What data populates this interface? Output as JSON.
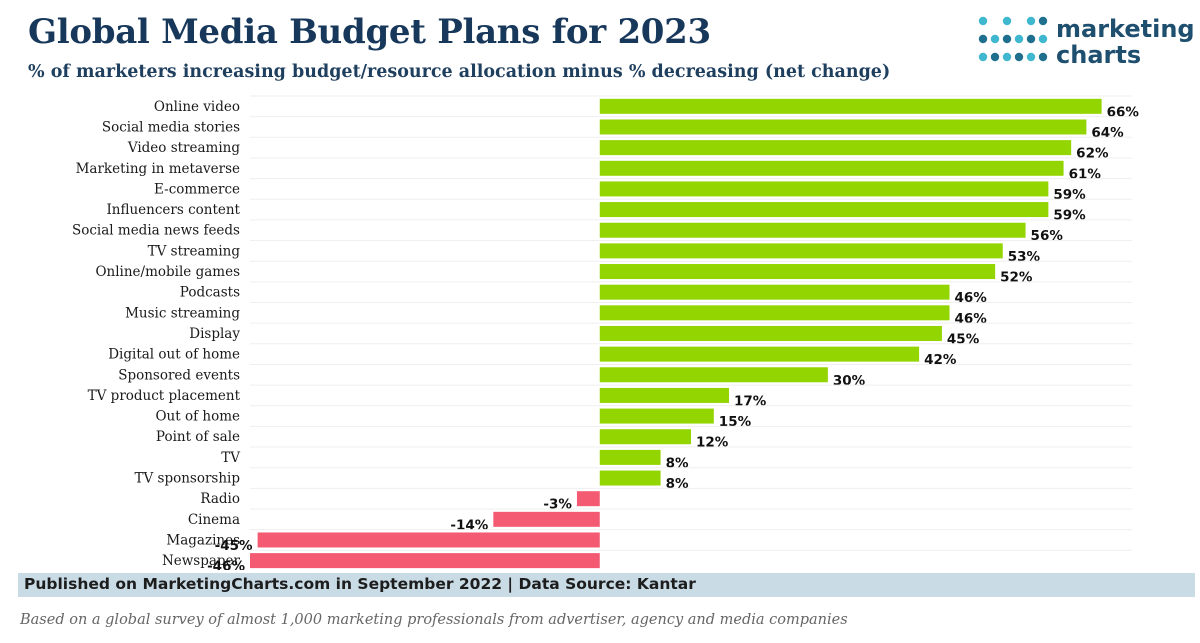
{
  "header": {
    "title": "Global Media Budget Plans for 2023",
    "subtitle": "% of marketers increasing budget/resource allocation minus % decreasing (net change)"
  },
  "logo": {
    "line1": "marketing",
    "line2": "charts",
    "dot_color_a": "#3fb8cf",
    "dot_color_b": "#1f6f8f"
  },
  "footer": {
    "source": "Published on MarketingCharts.com in September 2022 | Data Source: Kantar",
    "note": "Based on a global survey of almost 1,000 marketing professionals from advertiser, agency and media companies"
  },
  "chart_data": {
    "type": "bar",
    "orientation": "horizontal",
    "categories": [
      "Online video",
      "Social media stories",
      "Video streaming",
      "Marketing in metaverse",
      "E-commerce",
      "Influencers content",
      "Social media news feeds",
      "TV streaming",
      "Online/mobile games",
      "Podcasts",
      "Music streaming",
      "Display",
      "Digital out of home",
      "Sponsored events",
      "TV product placement",
      "Out of home",
      "Point of sale",
      "TV",
      "TV sponsorship",
      "Radio",
      "Cinema",
      "Magazines",
      "Newspaper"
    ],
    "values": [
      66,
      64,
      62,
      61,
      59,
      59,
      56,
      53,
      52,
      46,
      46,
      45,
      42,
      30,
      17,
      15,
      12,
      8,
      8,
      -3,
      -14,
      -45,
      -46
    ],
    "labels": [
      "66%",
      "64%",
      "62%",
      "61%",
      "59%",
      "59%",
      "56%",
      "53%",
      "52%",
      "46%",
      "46%",
      "45%",
      "42%",
      "30%",
      "17%",
      "15%",
      "12%",
      "8%",
      "8%",
      "-3%",
      "-14%",
      "-45%",
      "-46%"
    ],
    "xlim": [
      -46,
      70
    ],
    "positive_color": "#93d500",
    "negative_color": "#f45b73",
    "grid": true
  }
}
